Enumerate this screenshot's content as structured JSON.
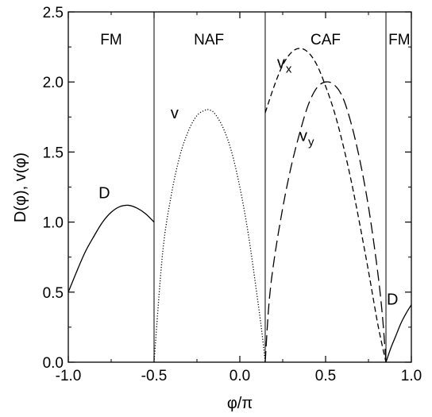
{
  "chart_data": {
    "type": "line",
    "xlabel": "φ/π",
    "ylabel": "D(φ), v(φ)",
    "xlim": [
      -1.0,
      1.0
    ],
    "ylim": [
      0.0,
      2.5
    ],
    "xticks": [
      -1.0,
      -0.5,
      0.0,
      0.5,
      1.0
    ],
    "xtick_labels": [
      "-1.0",
      "-0.5",
      "0.0",
      "0.5",
      "1.0"
    ],
    "yticks": [
      0.0,
      0.5,
      1.0,
      1.5,
      2.0,
      2.5
    ],
    "ytick_labels": [
      "0.0",
      "0.5",
      "1.0",
      "1.5",
      "2.0",
      "2.5"
    ],
    "boundaries": [
      -0.5,
      0.148,
      0.852
    ],
    "regions": [
      {
        "label": "FM",
        "x": -0.75
      },
      {
        "label": "NAF",
        "x": -0.18
      },
      {
        "label": "CAF",
        "x": 0.5
      },
      {
        "label": "FM",
        "x": 0.93
      }
    ],
    "series": [
      {
        "style": "solid",
        "x": [
          -1.0,
          -0.95,
          -0.9,
          -0.85,
          -0.8,
          -0.75,
          -0.7,
          -0.65,
          -0.6,
          -0.55,
          -0.5
        ],
        "y": [
          0.5,
          0.65,
          0.79,
          0.9,
          1.0,
          1.07,
          1.11,
          1.12,
          1.1,
          1.06,
          1.0
        ]
      },
      {
        "style": "dotted",
        "x": [
          -0.5,
          -0.45,
          -0.4,
          -0.35,
          -0.3,
          -0.25,
          -0.2,
          -0.18,
          -0.15,
          -0.1,
          -0.05,
          0.0,
          0.05,
          0.1,
          0.13,
          0.148
        ],
        "y": [
          0.0,
          0.78,
          1.19,
          1.47,
          1.65,
          1.76,
          1.8,
          1.8,
          1.78,
          1.68,
          1.51,
          1.25,
          0.91,
          0.48,
          0.2,
          0.0
        ]
      },
      {
        "style": "dashed",
        "x": [
          0.148,
          0.2,
          0.25,
          0.3,
          0.35,
          0.4,
          0.45,
          0.5,
          0.55,
          0.6,
          0.65,
          0.7,
          0.75,
          0.8,
          0.83,
          0.852
        ],
        "y": [
          1.78,
          1.97,
          2.12,
          2.21,
          2.24,
          2.21,
          2.12,
          1.97,
          1.79,
          1.56,
          1.29,
          0.98,
          0.65,
          0.3,
          0.12,
          0.0
        ]
      },
      {
        "style": "longdash",
        "x": [
          0.148,
          0.17,
          0.2,
          0.25,
          0.3,
          0.35,
          0.4,
          0.45,
          0.5,
          0.55,
          0.6,
          0.65,
          0.7,
          0.75,
          0.8,
          0.83,
          0.852
        ],
        "y": [
          0.0,
          0.42,
          0.73,
          1.1,
          1.4,
          1.64,
          1.84,
          1.96,
          2.0,
          1.98,
          1.89,
          1.7,
          1.44,
          1.11,
          0.68,
          0.35,
          0.0
        ]
      },
      {
        "style": "solid",
        "x": [
          0.852,
          0.88,
          0.91,
          0.94,
          0.97,
          1.0
        ],
        "y": [
          0.0,
          0.1,
          0.19,
          0.28,
          0.35,
          0.41
        ]
      }
    ],
    "annotations": [
      {
        "text": "D",
        "sub": "",
        "x": -0.79,
        "y": 1.17
      },
      {
        "text": "v",
        "sub": "",
        "x": -0.38,
        "y": 1.74
      },
      {
        "text": "v",
        "sub": "x",
        "x": 0.26,
        "y": 2.1
      },
      {
        "text": "v",
        "sub": "y",
        "x": 0.39,
        "y": 1.58
      },
      {
        "text": "D",
        "sub": "",
        "x": 0.89,
        "y": 0.41
      }
    ],
    "grid": false,
    "legend": "none"
  }
}
